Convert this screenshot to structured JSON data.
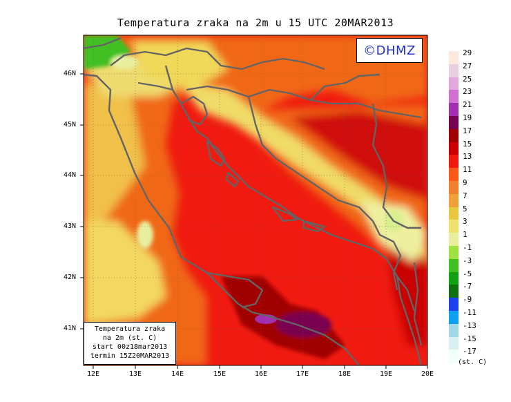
{
  "title": "Temperatura zraka na 2m u 15 UTC 20MAR2013",
  "copyright": "©DHMZ",
  "infobox": {
    "line1": "Temperatura zraka",
    "line2": "na 2m (st. C)",
    "line3": "start 00z18mar2013",
    "line4": "termin 15Z20MAR2013"
  },
  "lat_labels": [
    "46N",
    "45N",
    "44N",
    "43N",
    "42N",
    "41N"
  ],
  "lon_labels": [
    "12E",
    "13E",
    "14E",
    "15E",
    "16E",
    "17E",
    "18E",
    "19E",
    "20E"
  ],
  "legend": {
    "units": "(st. C)",
    "labels": [
      "29",
      "27",
      "25",
      "23",
      "21",
      "19",
      "17",
      "15",
      "13",
      "11",
      "9",
      "7",
      "5",
      "3",
      "1",
      "-1",
      "-3",
      "-5",
      "-7",
      "-9",
      "-11",
      "-13",
      "-15",
      "-17"
    ],
    "colors": [
      "#fce8dc",
      "#e8d0e0",
      "#e0a8dc",
      "#d070d0",
      "#a030b0",
      "#780050",
      "#a00000",
      "#c80000",
      "#f01a10",
      "#f85818",
      "#f08030",
      "#f0a038",
      "#e8c840",
      "#f0e070",
      "#e8f0a0",
      "#a0e040",
      "#40c020",
      "#10a010",
      "#107010",
      "#2040f0",
      "#10a0f0",
      "#a0d8e8",
      "#d8f0f0",
      "#f0fff8"
    ]
  },
  "colors": {
    "sea_warm": "#f01a10",
    "land_orange": "#f06818",
    "coast_line": "#646464"
  }
}
